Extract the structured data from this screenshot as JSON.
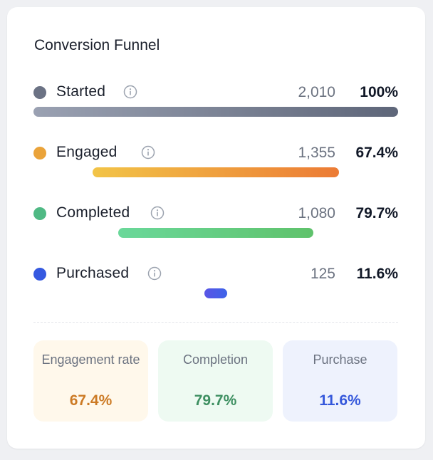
{
  "card": {
    "title": "Conversion Funnel"
  },
  "stages": [
    {
      "label": "Started",
      "count": "2,010",
      "percent": "100%",
      "color": "#6b7284",
      "bar_from": "#9aa1b2",
      "bar_to": "#5e6679",
      "share_of_max": 1.0
    },
    {
      "label": "Engaged",
      "count": "1,355",
      "percent": "67.4%",
      "color": "#eaa33a",
      "bar_from": "#f2c447",
      "bar_to": "#ec7b35",
      "share_of_max": 0.674
    },
    {
      "label": "Completed",
      "count": "1,080",
      "percent": "79.7%",
      "color": "#4fb984",
      "bar_from": "#6ad89a",
      "bar_to": "#5fc26b",
      "share_of_max": 0.537
    },
    {
      "label": "Purchased",
      "count": "125",
      "percent": "11.6%",
      "color": "#3559e0",
      "bar_from": "#5a55e6",
      "bar_to": "#3d63e8",
      "share_of_max": 0.062
    }
  ],
  "info_icon": "info-icon",
  "summary": [
    {
      "label": "Engagement rate",
      "value": "67.4%",
      "bg": "#fff8eb",
      "value_color": "#cc7a24"
    },
    {
      "label": "Completion",
      "value": "79.7%",
      "bg": "#eefaf2",
      "value_color": "#3d8f61"
    },
    {
      "label": "Purchase",
      "value": "11.6%",
      "bg": "#eef2fd",
      "value_color": "#3558db"
    }
  ]
}
